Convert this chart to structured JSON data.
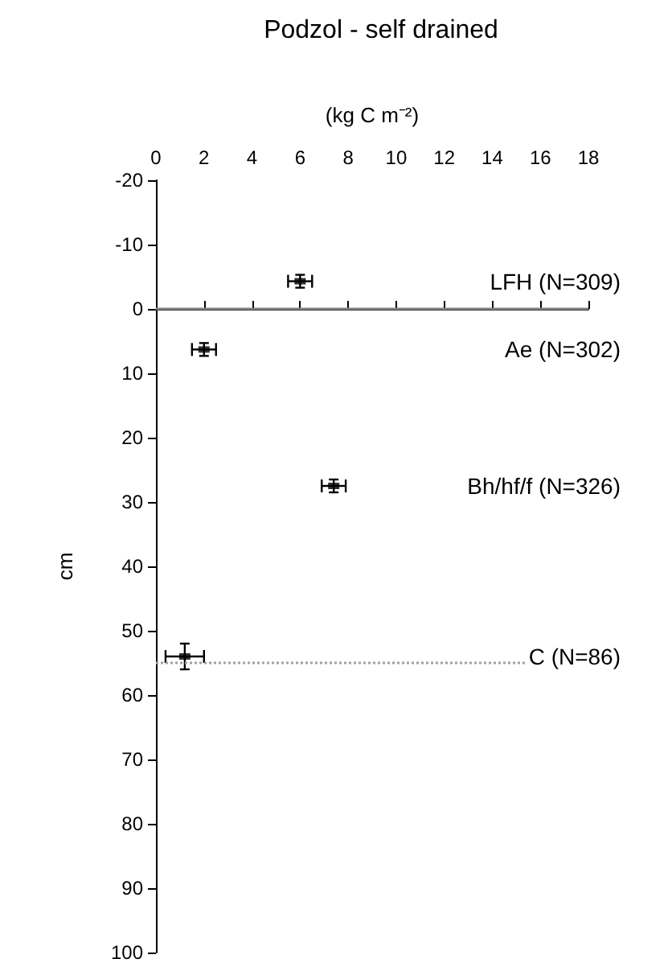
{
  "chart_data": {
    "type": "scatter",
    "title": "Podzol - self drained",
    "xlabel": "(kg C m⁻²)",
    "ylabel": "cm",
    "series": [
      {
        "name": "LFH (N=309)",
        "color": "#000000",
        "x": [
          6.0
        ],
        "values": [
          -4.3
        ],
        "xerrors": [
          0.5
        ],
        "errors": [
          1
        ]
      },
      {
        "name": "Ae (N=302)",
        "color": "#000000",
        "x": [
          2.0
        ],
        "values": [
          6.3
        ],
        "xerrors": [
          0.5
        ],
        "errors": [
          1
        ]
      },
      {
        "name": "Bh/hf/f (N=326)",
        "color": "#000000",
        "x": [
          7.4
        ],
        "values": [
          27.5
        ],
        "xerrors": [
          0.5
        ],
        "errors": [
          1
        ]
      },
      {
        "name": "C (N=86)",
        "color": "#000000",
        "x": [
          1.2
        ],
        "values": [
          54
        ],
        "xerrors": [
          0.8
        ],
        "errors": [
          2
        ]
      }
    ],
    "xlim": [
      0,
      18
    ],
    "xticks": [
      0,
      2,
      4,
      6,
      8,
      10,
      12,
      14,
      16,
      18
    ],
    "ylim": [
      100,
      -20
    ],
    "yticks": [
      -20,
      -10,
      0,
      10,
      20,
      30,
      40,
      50,
      60,
      70,
      80,
      90,
      100
    ],
    "ref_lines": [
      {
        "axis": "y",
        "value": 0,
        "color": "#808080",
        "line_style": "solid"
      },
      {
        "axis": "y",
        "value": 55,
        "color": "#a0a0a0",
        "line_style": "dotted"
      }
    ],
    "marker": "square",
    "grid": false,
    "legend": false
  }
}
